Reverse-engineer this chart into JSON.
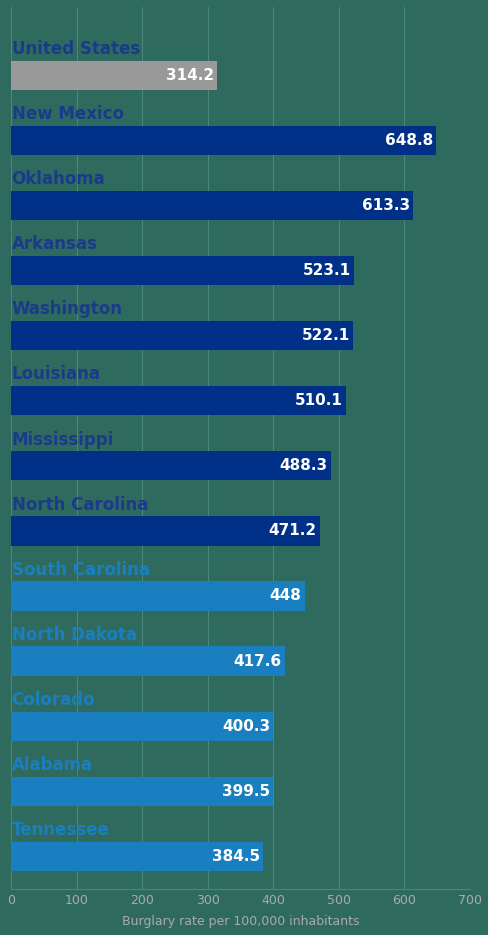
{
  "categories": [
    "United States",
    "New Mexico",
    "Oklahoma",
    "Arkansas",
    "Washington",
    "Louisiana",
    "Mississippi",
    "North Carolina",
    "South Carolina",
    "North Dakota",
    "Colorado",
    "Alabama",
    "Tennessee"
  ],
  "values": [
    314.2,
    648.8,
    613.3,
    523.1,
    522.1,
    510.1,
    488.3,
    471.2,
    448.0,
    417.6,
    400.3,
    399.5,
    384.5
  ],
  "bar_colors": [
    "#999999",
    "#003087",
    "#003087",
    "#003087",
    "#003087",
    "#003087",
    "#003087",
    "#003087",
    "#1a7fc1",
    "#1a7fc1",
    "#1a7fc1",
    "#1a7fc1",
    "#1a7fc1"
  ],
  "label_color_dark": "#1a3a8c",
  "label_color_light": "#1a7fc1",
  "label_color_us": "#1a3a8c",
  "value_label_color": "#ffffff",
  "xlabel": "Burglary rate per 100,000 inhabitants",
  "xlim": [
    0,
    700
  ],
  "xticks": [
    0,
    100,
    200,
    300,
    400,
    500,
    600,
    700
  ],
  "background_color": "#2e6b5e",
  "label_fontsize": 12,
  "value_fontsize": 11,
  "xlabel_fontsize": 9,
  "bar_height": 0.45,
  "tick_color": "#aaaaaa",
  "xlabel_color": "#aaaaaa",
  "category_colors": [
    "#1a3a8c",
    "#1a3a8c",
    "#1a3a8c",
    "#1a3a8c",
    "#1a3a8c",
    "#1a3a8c",
    "#1a3a8c",
    "#1a3a8c",
    "#1a7fc1",
    "#1a7fc1",
    "#1a7fc1",
    "#1a7fc1",
    "#1a7fc1"
  ]
}
